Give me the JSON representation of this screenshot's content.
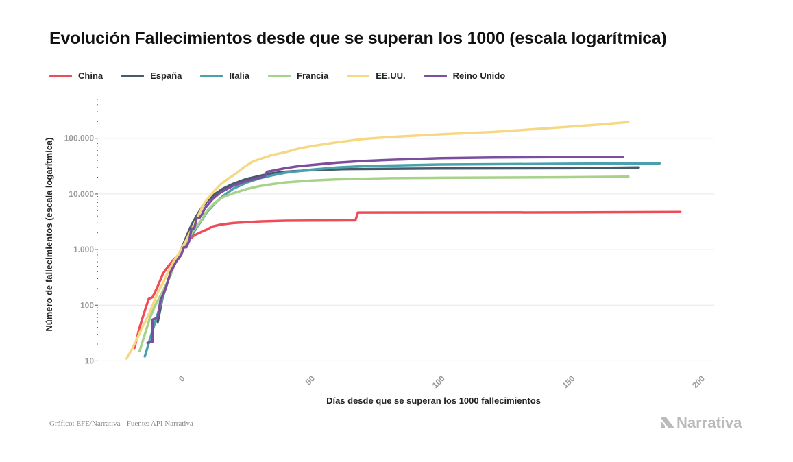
{
  "title": "Evolución Fallecimientos desde que se superan los 1000 (escala logarítmica)",
  "source": "Gráfico: EFE/Narrativa - Fuente: API Narrativa",
  "brand": "Narrativa",
  "chart_data": {
    "type": "line",
    "xlabel": "Días desde que se superan los 1000 fallecimientos",
    "ylabel": "Número de fallecimientos (escala logarítmica)",
    "xlim": [
      -32,
      205
    ],
    "ylim": [
      7,
      500000
    ],
    "y_scale": "log",
    "grid": true,
    "legend_position": "top-left",
    "x_ticks": [
      {
        "value": 0,
        "label": "0"
      },
      {
        "value": 50,
        "label": "50"
      },
      {
        "value": 100,
        "label": "100"
      },
      {
        "value": 150,
        "label": "150"
      },
      {
        "value": 200,
        "label": "200"
      }
    ],
    "y_ticks": [
      {
        "value": 10,
        "label": "10"
      },
      {
        "value": 100,
        "label": "100"
      },
      {
        "value": 1000,
        "label": "1.000"
      },
      {
        "value": 10000,
        "label": "10.000"
      },
      {
        "value": 100000,
        "label": "100.000"
      }
    ],
    "series": [
      {
        "name": "China",
        "color": "#ee4c58",
        "points": [
          [
            -18,
            17
          ],
          [
            -16,
            40
          ],
          [
            -14,
            80
          ],
          [
            -12.5,
            130
          ],
          [
            -11,
            140
          ],
          [
            -9,
            220
          ],
          [
            -7,
            370
          ],
          [
            -5,
            500
          ],
          [
            -3,
            650
          ],
          [
            -1,
            800
          ],
          [
            0,
            950
          ],
          [
            1,
            1150
          ],
          [
            3,
            1500
          ],
          [
            5,
            1800
          ],
          [
            8,
            2100
          ],
          [
            10,
            2300
          ],
          [
            12,
            2600
          ],
          [
            15,
            2800
          ],
          [
            20,
            3000
          ],
          [
            30,
            3200
          ],
          [
            40,
            3300
          ],
          [
            50,
            3330
          ],
          [
            60,
            3340
          ],
          [
            67,
            3345
          ],
          [
            68,
            4630
          ],
          [
            100,
            4640
          ],
          [
            150,
            4650
          ],
          [
            175,
            4700
          ],
          [
            192,
            4740
          ]
        ]
      },
      {
        "name": "España",
        "color": "#465a69",
        "points": [
          [
            -9,
            50
          ],
          [
            -7,
            150
          ],
          [
            -4,
            400
          ],
          [
            -2,
            700
          ],
          [
            0,
            1000
          ],
          [
            2,
            1700
          ],
          [
            4,
            2800
          ],
          [
            6,
            4100
          ],
          [
            8,
            5700
          ],
          [
            10,
            7400
          ],
          [
            13,
            10000
          ],
          [
            16,
            12400
          ],
          [
            20,
            15200
          ],
          [
            25,
            18500
          ],
          [
            30,
            21000
          ],
          [
            35,
            23500
          ],
          [
            40,
            25000
          ],
          [
            50,
            26800
          ],
          [
            62,
            27900
          ],
          [
            100,
            28700
          ],
          [
            150,
            29000
          ],
          [
            176,
            30000
          ]
        ]
      },
      {
        "name": "Italia",
        "color": "#4aa0ad",
        "points": [
          [
            -14,
            12
          ],
          [
            -12,
            25
          ],
          [
            -10,
            50
          ],
          [
            -8,
            100
          ],
          [
            -6,
            200
          ],
          [
            -4,
            400
          ],
          [
            -2,
            650
          ],
          [
            0,
            1000
          ],
          [
            2,
            1300
          ],
          [
            4,
            1800
          ],
          [
            6,
            2500
          ],
          [
            8,
            3400
          ],
          [
            10,
            4800
          ],
          [
            13,
            6800
          ],
          [
            16,
            9100
          ],
          [
            20,
            12400
          ],
          [
            25,
            15900
          ],
          [
            30,
            19000
          ],
          [
            35,
            21600
          ],
          [
            40,
            24000
          ],
          [
            50,
            27300
          ],
          [
            60,
            29900
          ],
          [
            70,
            31600
          ],
          [
            100,
            33800
          ],
          [
            150,
            34800
          ],
          [
            184,
            35500
          ]
        ]
      },
      {
        "name": "Francia",
        "color": "#a6d28a",
        "points": [
          [
            -16,
            15
          ],
          [
            -14,
            30
          ],
          [
            -12,
            60
          ],
          [
            -10,
            100
          ],
          [
            -7,
            180
          ],
          [
            -4,
            350
          ],
          [
            -2,
            650
          ],
          [
            0,
            1000
          ],
          [
            2,
            1400
          ],
          [
            5,
            2300
          ],
          [
            8,
            3500
          ],
          [
            10,
            5000
          ],
          [
            13,
            7000
          ],
          [
            16,
            8700
          ],
          [
            20,
            10300
          ],
          [
            25,
            12200
          ],
          [
            30,
            13800
          ],
          [
            35,
            15000
          ],
          [
            40,
            16100
          ],
          [
            50,
            17400
          ],
          [
            60,
            18300
          ],
          [
            80,
            19200
          ],
          [
            100,
            19500
          ],
          [
            150,
            20000
          ],
          [
            172,
            20400
          ]
        ]
      },
      {
        "name": "EE.UU.",
        "color": "#f6d883",
        "points": [
          [
            -21,
            11
          ],
          [
            -19,
            16
          ],
          [
            -17,
            25
          ],
          [
            -15,
            40
          ],
          [
            -13,
            60
          ],
          [
            -11,
            100
          ],
          [
            -9,
            170
          ],
          [
            -7,
            250
          ],
          [
            -5,
            400
          ],
          [
            -3,
            600
          ],
          [
            0,
            1000
          ],
          [
            2,
            1500
          ],
          [
            4,
            2300
          ],
          [
            6,
            3600
          ],
          [
            9,
            7000
          ],
          [
            12,
            10400
          ],
          [
            15,
            14700
          ],
          [
            18,
            18700
          ],
          [
            21,
            23000
          ],
          [
            24,
            30000
          ],
          [
            27,
            37000
          ],
          [
            30,
            42000
          ],
          [
            35,
            50000
          ],
          [
            40,
            56000
          ],
          [
            45,
            65000
          ],
          [
            50,
            72000
          ],
          [
            60,
            85000
          ],
          [
            70,
            97000
          ],
          [
            80,
            105000
          ],
          [
            100,
            118000
          ],
          [
            120,
            130000
          ],
          [
            140,
            150000
          ],
          [
            160,
            175000
          ],
          [
            172,
            195000
          ]
        ]
      },
      {
        "name": "Reino Unido",
        "color": "#7c4f9e",
        "points": [
          [
            -13,
            21
          ],
          [
            -11,
            22
          ],
          [
            -11,
            55
          ],
          [
            -9,
            60
          ],
          [
            -8,
            120
          ],
          [
            -6,
            200
          ],
          [
            -4,
            400
          ],
          [
            -2,
            600
          ],
          [
            0,
            800
          ],
          [
            1,
            1100
          ],
          [
            2,
            1100
          ],
          [
            3,
            1400
          ],
          [
            4,
            2400
          ],
          [
            5,
            2400
          ],
          [
            6,
            3700
          ],
          [
            7,
            3700
          ],
          [
            8,
            4300
          ],
          [
            9,
            5400
          ],
          [
            10,
            6200
          ],
          [
            12,
            8000
          ],
          [
            15,
            10600
          ],
          [
            20,
            14000
          ],
          [
            25,
            17000
          ],
          [
            30,
            19500
          ],
          [
            32,
            20300
          ],
          [
            33,
            25000
          ],
          [
            40,
            29000
          ],
          [
            45,
            31500
          ],
          [
            50,
            33000
          ],
          [
            60,
            36500
          ],
          [
            70,
            39000
          ],
          [
            80,
            41000
          ],
          [
            100,
            44000
          ],
          [
            120,
            45200
          ],
          [
            150,
            46000
          ],
          [
            170,
            46200
          ]
        ]
      }
    ]
  }
}
